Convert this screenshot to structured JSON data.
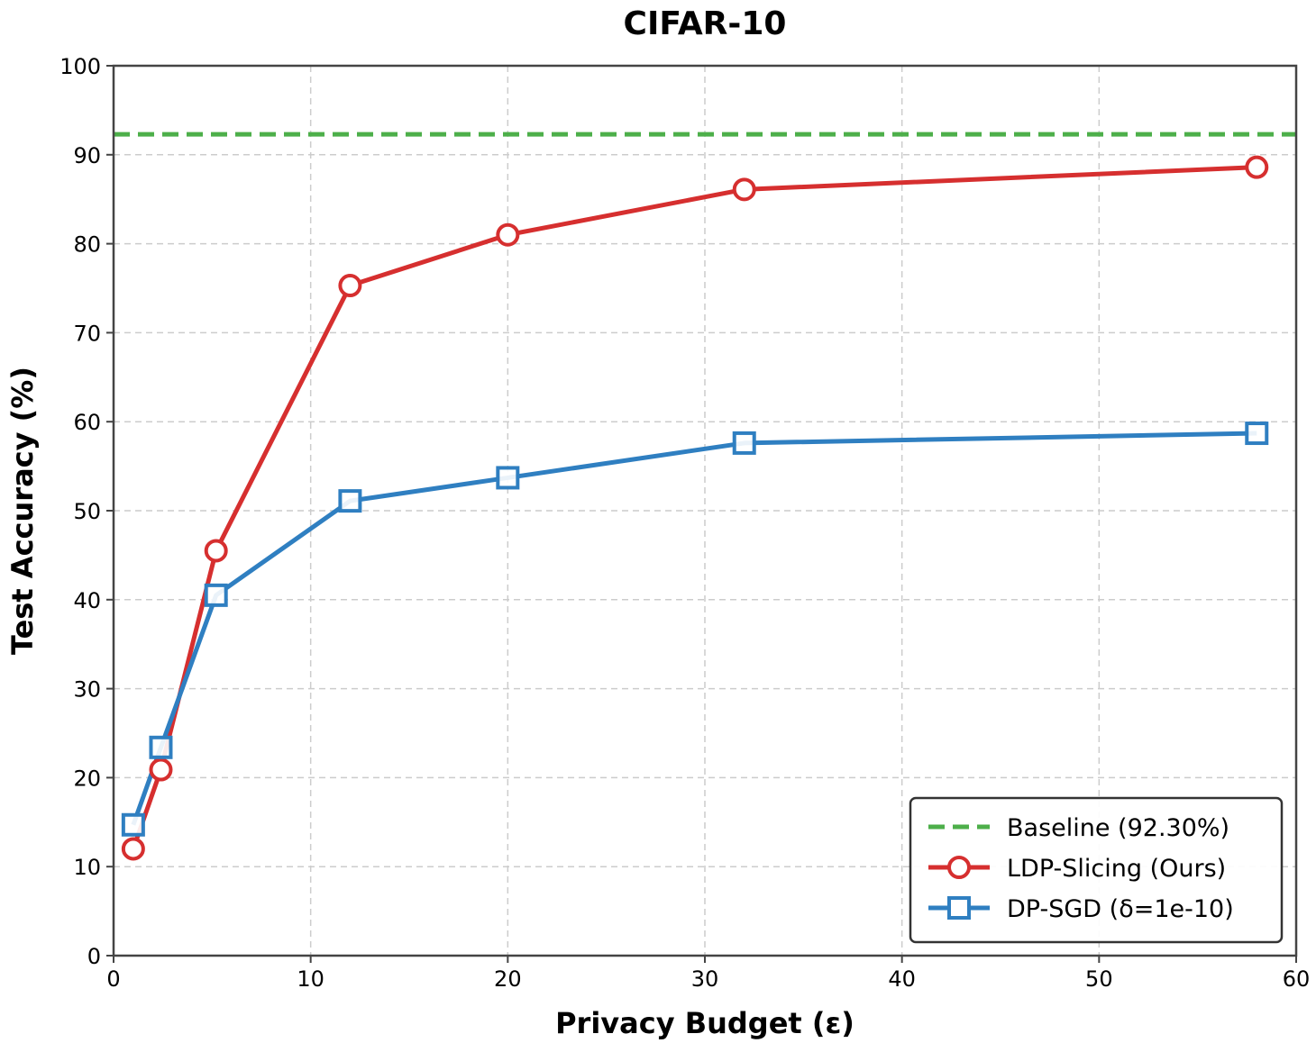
{
  "chart_data": {
    "type": "line",
    "title": "CIFAR-10",
    "xlabel": "Privacy Budget (ε)",
    "ylabel": "Test Accuracy (%)",
    "xlim": [
      0,
      60
    ],
    "ylim": [
      0,
      100
    ],
    "xticks": [
      0,
      10,
      20,
      30,
      40,
      50,
      60
    ],
    "yticks": [
      0,
      10,
      20,
      30,
      40,
      50,
      60,
      70,
      80,
      90,
      100
    ],
    "grid": true,
    "legend_position": "bottom-right",
    "baseline": {
      "name": "Baseline (92.30%)",
      "value": 92.3,
      "color": "#4daf4a",
      "style": "dashed"
    },
    "series": [
      {
        "name": "LDP-Slicing (Ours)",
        "color": "#d62f2f",
        "marker": "circle",
        "x": [
          1.0,
          2.4,
          5.2,
          12.0,
          20.0,
          32.0,
          58.0
        ],
        "y": [
          12.0,
          20.9,
          45.5,
          75.3,
          81.0,
          86.1,
          88.6
        ]
      },
      {
        "name": "DP-SGD (δ=1e-10)",
        "color": "#2f7fc1",
        "marker": "square",
        "x": [
          1.0,
          2.4,
          5.2,
          12.0,
          20.0,
          32.0,
          58.0
        ],
        "y": [
          14.7,
          23.4,
          40.5,
          51.1,
          53.7,
          57.6,
          58.7
        ]
      }
    ]
  }
}
